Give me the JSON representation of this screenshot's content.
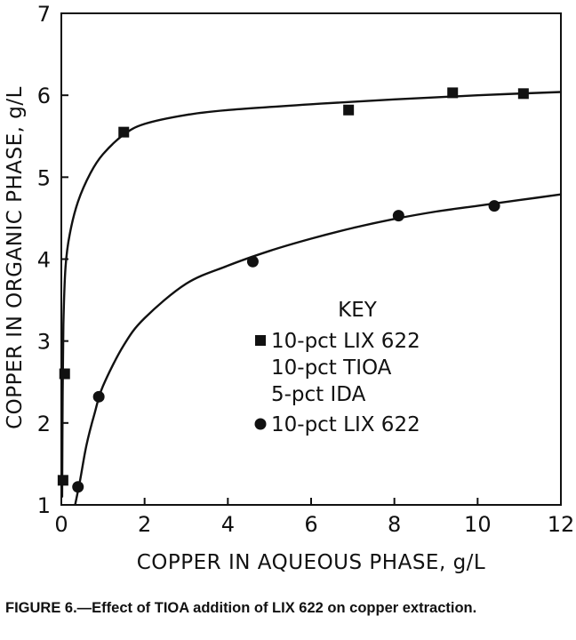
{
  "chart_data": {
    "type": "scatter",
    "xlabel": "COPPER IN AQUEOUS PHASE, g/L",
    "ylabel": "COPPER IN ORGANIC PHASE, g/L",
    "xlim": [
      0,
      12
    ],
    "ylim": [
      1,
      7
    ],
    "xticks": [
      0,
      2,
      4,
      6,
      8,
      10,
      12
    ],
    "yticks": [
      1,
      2,
      3,
      4,
      5,
      6,
      7
    ],
    "xtick_labels": [
      "0",
      "2",
      "4",
      "6",
      "8",
      "10",
      "12"
    ],
    "ytick_labels": [
      "1",
      "2",
      "3",
      "4",
      "5",
      "6",
      "7"
    ],
    "grid": false,
    "legend_title": "KEY",
    "legend_position": "center-right",
    "series": [
      {
        "name": "10-pct LIX 622 10-pct TIOA 5-pct IDA",
        "legend_lines": [
          "10-pct LIX 622",
          "10-pct TIOA",
          "5-pct IDA"
        ],
        "marker": "square",
        "points": [
          {
            "x": 0.04,
            "y": 1.3
          },
          {
            "x": 0.08,
            "y": 2.6
          },
          {
            "x": 1.5,
            "y": 5.55
          },
          {
            "x": 6.9,
            "y": 5.82
          },
          {
            "x": 9.4,
            "y": 6.03
          },
          {
            "x": 11.1,
            "y": 6.02
          }
        ],
        "curve": [
          {
            "x": 0.02,
            "y": 1.1
          },
          {
            "x": 0.03,
            "y": 2.2
          },
          {
            "x": 0.05,
            "y": 3.2
          },
          {
            "x": 0.1,
            "y": 3.9
          },
          {
            "x": 0.2,
            "y": 4.3
          },
          {
            "x": 0.4,
            "y": 4.7
          },
          {
            "x": 0.7,
            "y": 5.05
          },
          {
            "x": 1.0,
            "y": 5.28
          },
          {
            "x": 1.5,
            "y": 5.52
          },
          {
            "x": 2.0,
            "y": 5.65
          },
          {
            "x": 3.0,
            "y": 5.76
          },
          {
            "x": 4.0,
            "y": 5.82
          },
          {
            "x": 6.0,
            "y": 5.89
          },
          {
            "x": 8.0,
            "y": 5.95
          },
          {
            "x": 10.0,
            "y": 6.0
          },
          {
            "x": 12.0,
            "y": 6.04
          }
        ]
      },
      {
        "name": "10-pct LIX 622",
        "legend_lines": [
          "10-pct LIX 622"
        ],
        "marker": "circle",
        "points": [
          {
            "x": 0.4,
            "y": 1.22
          },
          {
            "x": 0.9,
            "y": 2.32
          },
          {
            "x": 4.6,
            "y": 3.97
          },
          {
            "x": 8.1,
            "y": 4.53
          },
          {
            "x": 10.4,
            "y": 4.65
          }
        ],
        "curve": [
          {
            "x": 0.3,
            "y": 0.92
          },
          {
            "x": 0.45,
            "y": 1.3
          },
          {
            "x": 0.6,
            "y": 1.72
          },
          {
            "x": 0.8,
            "y": 2.12
          },
          {
            "x": 1.0,
            "y": 2.45
          },
          {
            "x": 1.5,
            "y": 2.95
          },
          {
            "x": 2.0,
            "y": 3.28
          },
          {
            "x": 3.0,
            "y": 3.7
          },
          {
            "x": 4.0,
            "y": 3.92
          },
          {
            "x": 5.0,
            "y": 4.1
          },
          {
            "x": 6.0,
            "y": 4.25
          },
          {
            "x": 7.0,
            "y": 4.38
          },
          {
            "x": 8.0,
            "y": 4.49
          },
          {
            "x": 9.0,
            "y": 4.58
          },
          {
            "x": 10.0,
            "y": 4.65
          },
          {
            "x": 11.0,
            "y": 4.72
          },
          {
            "x": 12.0,
            "y": 4.79
          }
        ]
      }
    ]
  },
  "caption": "FIGURE 6.—Effect of TIOA addition of LIX 622 on copper extraction.",
  "colors": {
    "ink": "#111111",
    "background": "#ffffff"
  }
}
